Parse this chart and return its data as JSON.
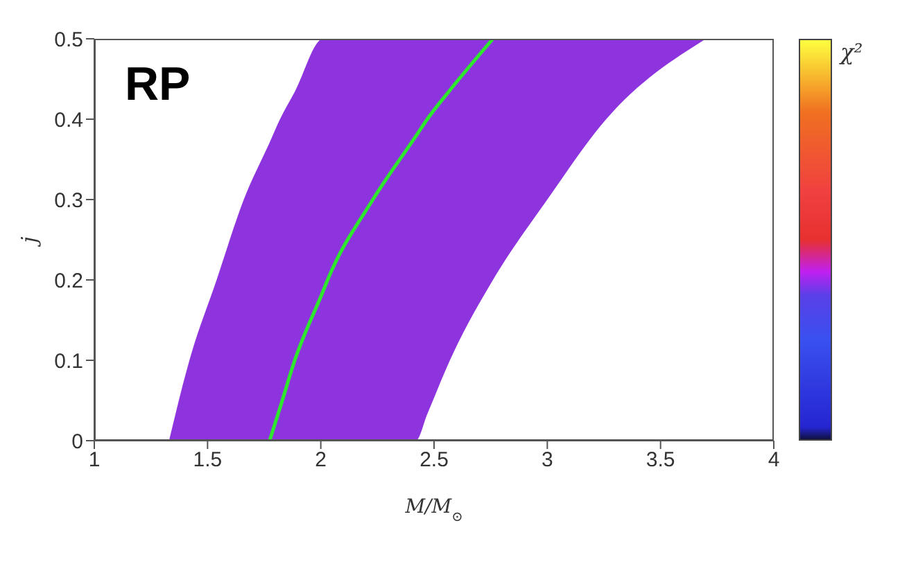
{
  "chart_data": {
    "type": "line",
    "xlabel": "M/M$_{⊙}$",
    "ylabel": "j",
    "clabel": "χ²",
    "annotations": [
      "RP"
    ],
    "xlim": [
      1,
      4
    ],
    "xticks": [
      1,
      1.5,
      2,
      2.5,
      3,
      3.5,
      4
    ],
    "ylim": [
      0,
      0.5
    ],
    "yticks": [
      0,
      0.1,
      0.2,
      0.3,
      0.4,
      0.5
    ],
    "marker": "none",
    "line_style": "solid",
    "series": [
      {
        "color": "#2ee82e",
        "x": [
          1.33,
          1.42,
          1.54,
          1.66,
          1.774,
          1.82,
          1.885,
          2.01,
          2.03,
          2.23,
          2.42,
          2.47,
          2.57,
          2.76,
          3.0,
          3.26,
          3.7
        ],
        "values": [
          null,
          null,
          null,
          null,
          0,
          0.041,
          0.1,
          0.186,
          0.2,
          0.3,
          0.379,
          0.4,
          0.436,
          0.5,
          null,
          null,
          null
        ],
        "lower": [
          0,
          0,
          0,
          0,
          0,
          0,
          0,
          0,
          0,
          0,
          0,
          0.033,
          0.1,
          0.2,
          0.3,
          0.4,
          0.5
        ],
        "upper": [
          0,
          0.1,
          0.2,
          0.3,
          0.371,
          0.4,
          0.434,
          0.5,
          0.5,
          0.5,
          0.5,
          0.5,
          0.5,
          0.5,
          0.5,
          0.5,
          0.5
        ]
      }
    ]
  }
}
